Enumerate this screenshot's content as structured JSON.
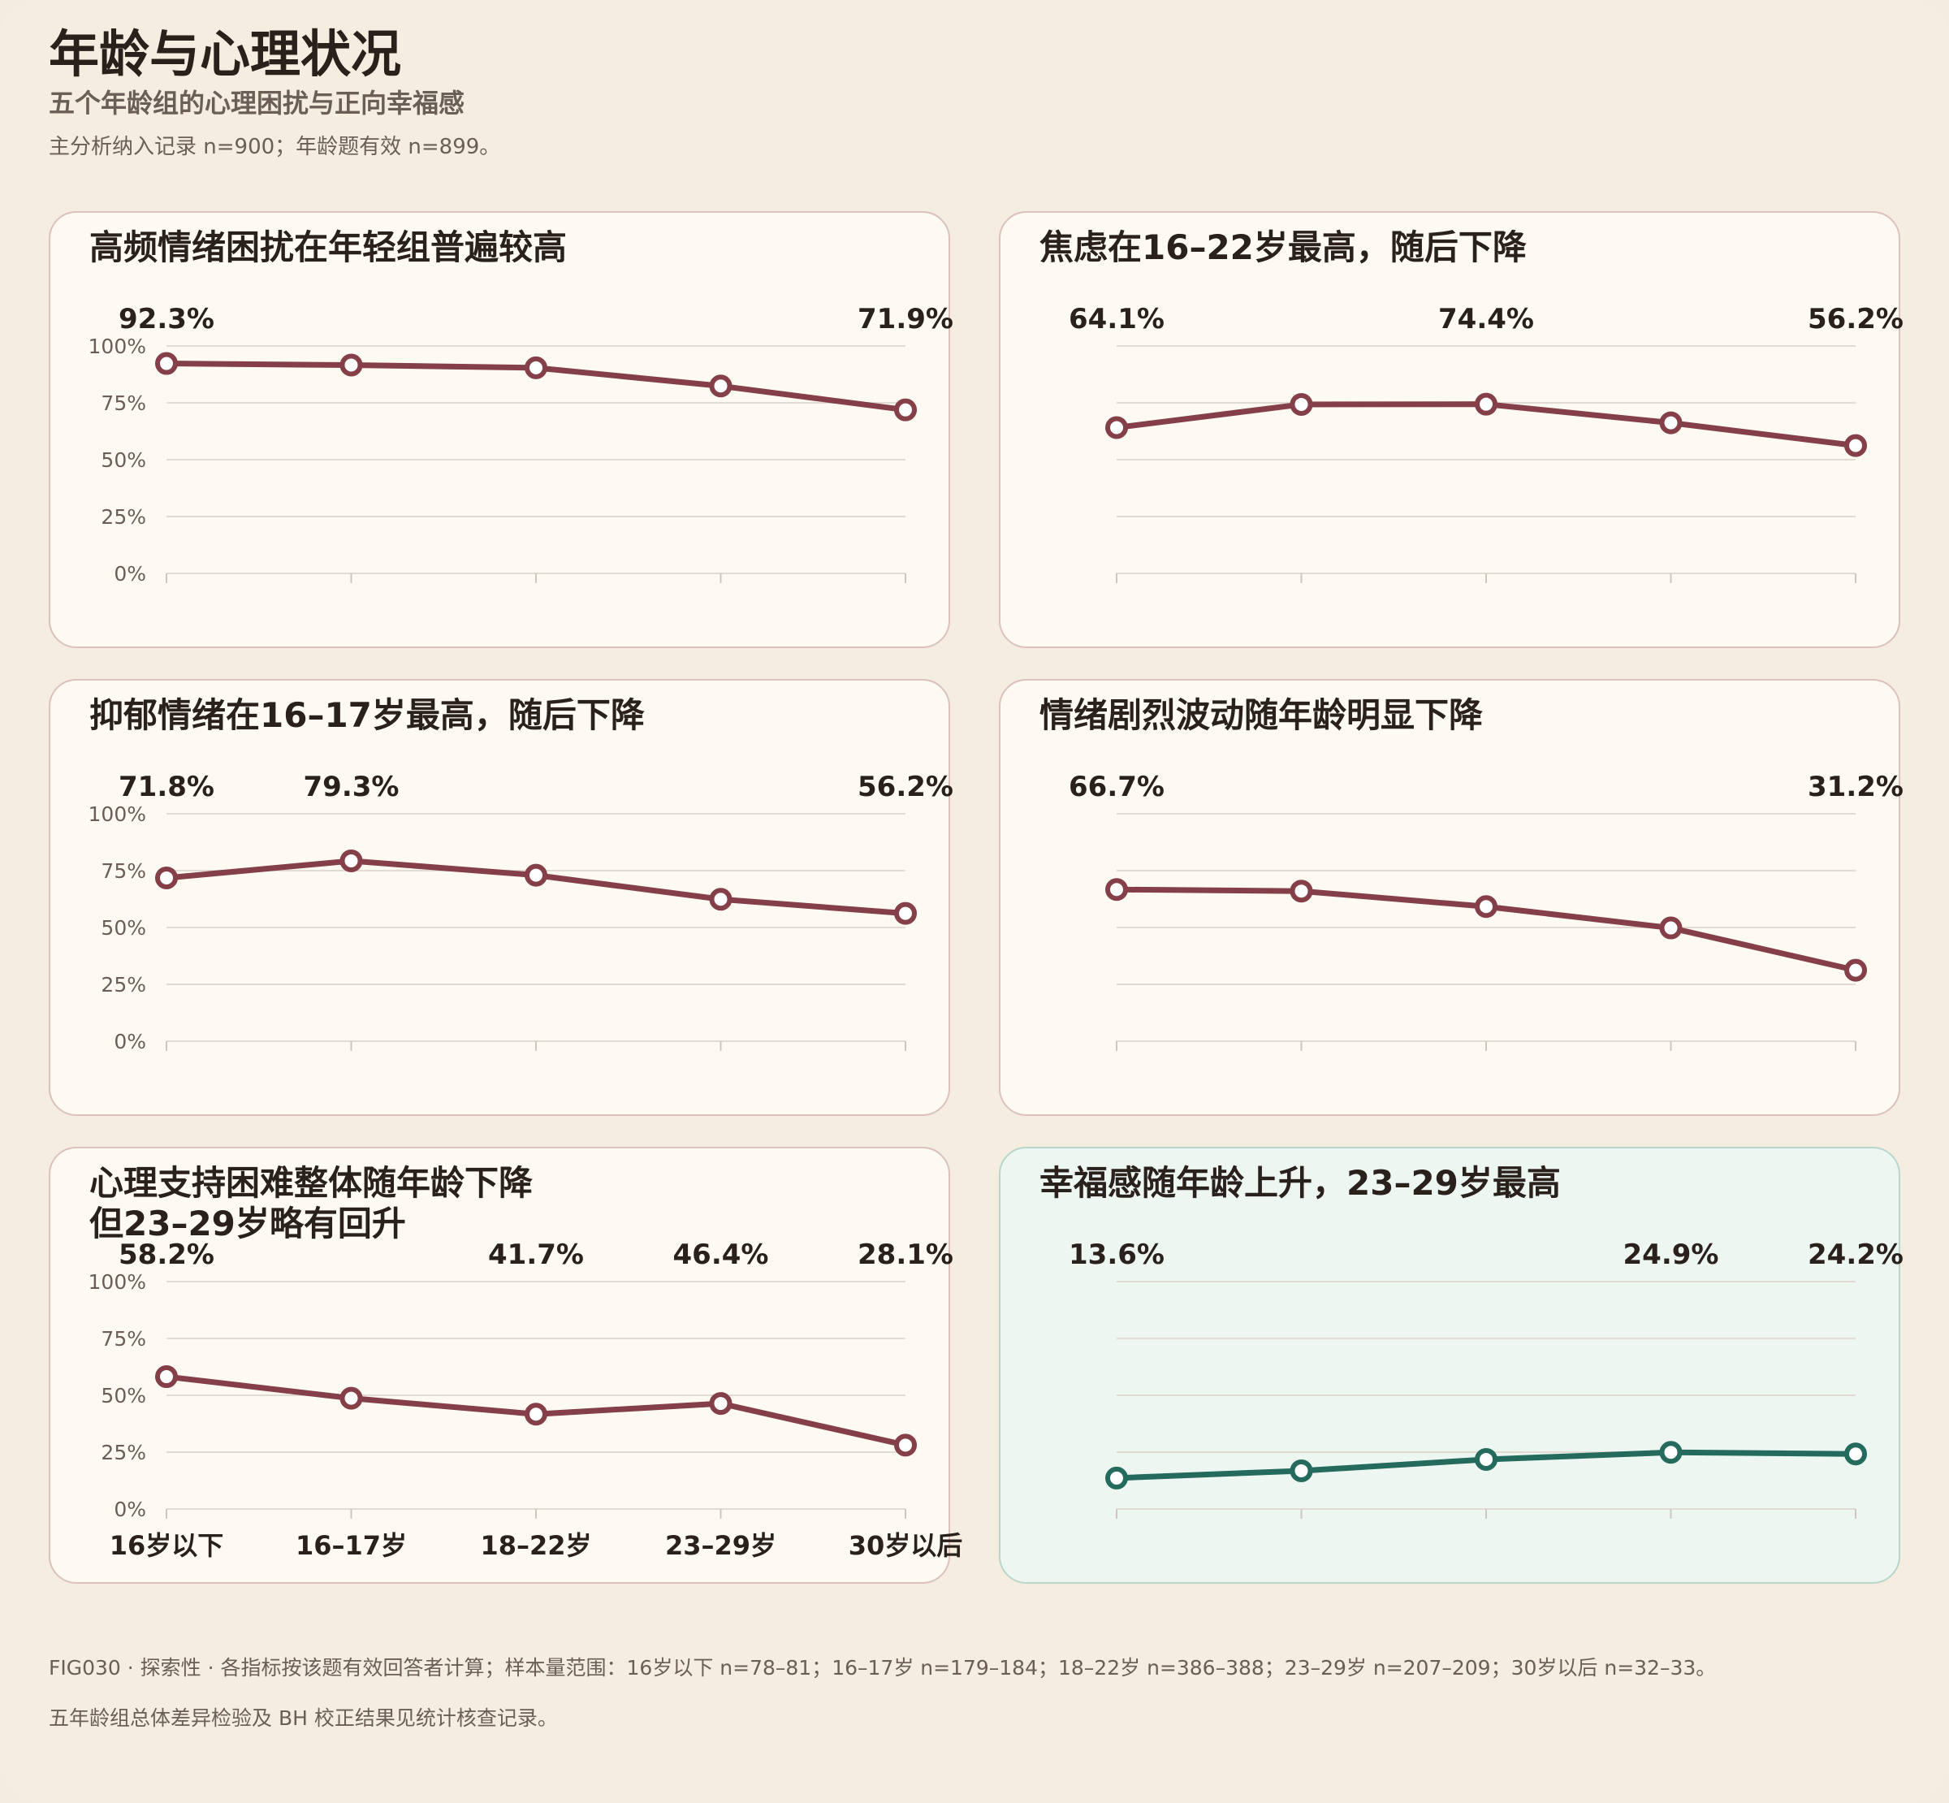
{
  "header": {
    "title": "年龄与心理状况",
    "subtitle": "五个年龄组的心理困扰与正向幸福感",
    "note": "主分析纳入记录 n=900；年龄题有效 n=899。"
  },
  "footer": {
    "line1": "FIG030 · 探索性 · 各指标按该题有效回答者计算；样本量范围：16岁以下 n=78–81；16–17岁 n=179–184；18–22岁 n=386–388；23–29岁 n=207–209；30岁以后 n=32–33。",
    "line2": "五年龄组总体差异检验及 BH 校正结果见统计核查记录。"
  },
  "colors": {
    "distress": "#853f48",
    "wellbeing": "#246b5e",
    "grid": "#e2dbd3"
  },
  "chart_data": [
    {
      "type": "line",
      "title": "高频情绪困扰在年轻组普遍较高",
      "categories": [
        "16岁以下",
        "16–17岁",
        "18–22岁",
        "23–29岁",
        "30岁以后"
      ],
      "values": [
        92.3,
        91.6,
        90.4,
        82.4,
        71.9
      ],
      "labels": [
        "92.3%",
        "",
        "",
        "",
        "71.9%"
      ],
      "ylim": [
        0,
        100
      ],
      "yticks": [
        "0%",
        "25%",
        "50%",
        "75%",
        "100%"
      ],
      "show_yticks": true,
      "show_xticks": false,
      "color": "#853f48",
      "grid": true
    },
    {
      "type": "line",
      "title": "焦虑在16–22岁最高，随后下降",
      "categories": [
        "16岁以下",
        "16–17岁",
        "18–22岁",
        "23–29岁",
        "30岁以后"
      ],
      "values": [
        64.1,
        74.3,
        74.4,
        66.2,
        56.2
      ],
      "labels": [
        "64.1%",
        "",
        "74.4%",
        "",
        "56.2%"
      ],
      "ylim": [
        0,
        100
      ],
      "yticks": [
        "0%",
        "25%",
        "50%",
        "75%",
        "100%"
      ],
      "show_yticks": false,
      "show_xticks": false,
      "color": "#853f48",
      "grid": true
    },
    {
      "type": "line",
      "title": "抑郁情绪在16–17岁最高，随后下降",
      "categories": [
        "16岁以下",
        "16–17岁",
        "18–22岁",
        "23–29岁",
        "30岁以后"
      ],
      "values": [
        71.8,
        79.3,
        73.0,
        62.4,
        56.2
      ],
      "labels": [
        "71.8%",
        "79.3%",
        "",
        "",
        "56.2%"
      ],
      "ylim": [
        0,
        100
      ],
      "yticks": [
        "0%",
        "25%",
        "50%",
        "75%",
        "100%"
      ],
      "show_yticks": true,
      "show_xticks": false,
      "color": "#853f48",
      "grid": true
    },
    {
      "type": "line",
      "title": "情绪剧烈波动随年龄明显下降",
      "categories": [
        "16岁以下",
        "16–17岁",
        "18–22岁",
        "23–29岁",
        "30岁以后"
      ],
      "values": [
        66.7,
        66.0,
        59.2,
        49.8,
        31.2
      ],
      "labels": [
        "66.7%",
        "",
        "",
        "",
        "31.2%"
      ],
      "ylim": [
        0,
        100
      ],
      "yticks": [
        "0%",
        "25%",
        "50%",
        "75%",
        "100%"
      ],
      "show_yticks": false,
      "show_xticks": false,
      "color": "#853f48",
      "grid": true
    },
    {
      "type": "line",
      "title": "心理支持困难整体随年龄下降\n但23–29岁略有回升",
      "categories": [
        "16岁以下",
        "16–17岁",
        "18–22岁",
        "23–29岁",
        "30岁以后"
      ],
      "values": [
        58.2,
        48.7,
        41.7,
        46.4,
        28.1
      ],
      "labels": [
        "58.2%",
        "",
        "41.7%",
        "46.4%",
        "28.1%"
      ],
      "ylim": [
        0,
        100
      ],
      "yticks": [
        "0%",
        "25%",
        "50%",
        "75%",
        "100%"
      ],
      "show_yticks": true,
      "show_xticks": true,
      "color": "#853f48",
      "grid": true
    },
    {
      "type": "line",
      "title": "幸福感随年龄上升，23–29岁最高",
      "categories": [
        "16岁以下",
        "16–17岁",
        "18–22岁",
        "23–29岁",
        "30岁以后"
      ],
      "values": [
        13.6,
        16.8,
        21.8,
        24.9,
        24.2
      ],
      "labels": [
        "13.6%",
        "",
        "",
        "24.9%",
        "24.2%"
      ],
      "ylim": [
        0,
        100
      ],
      "yticks": [
        "0%",
        "25%",
        "50%",
        "75%",
        "100%"
      ],
      "show_yticks": false,
      "show_xticks": false,
      "color": "#246b5e",
      "grid": true
    }
  ]
}
